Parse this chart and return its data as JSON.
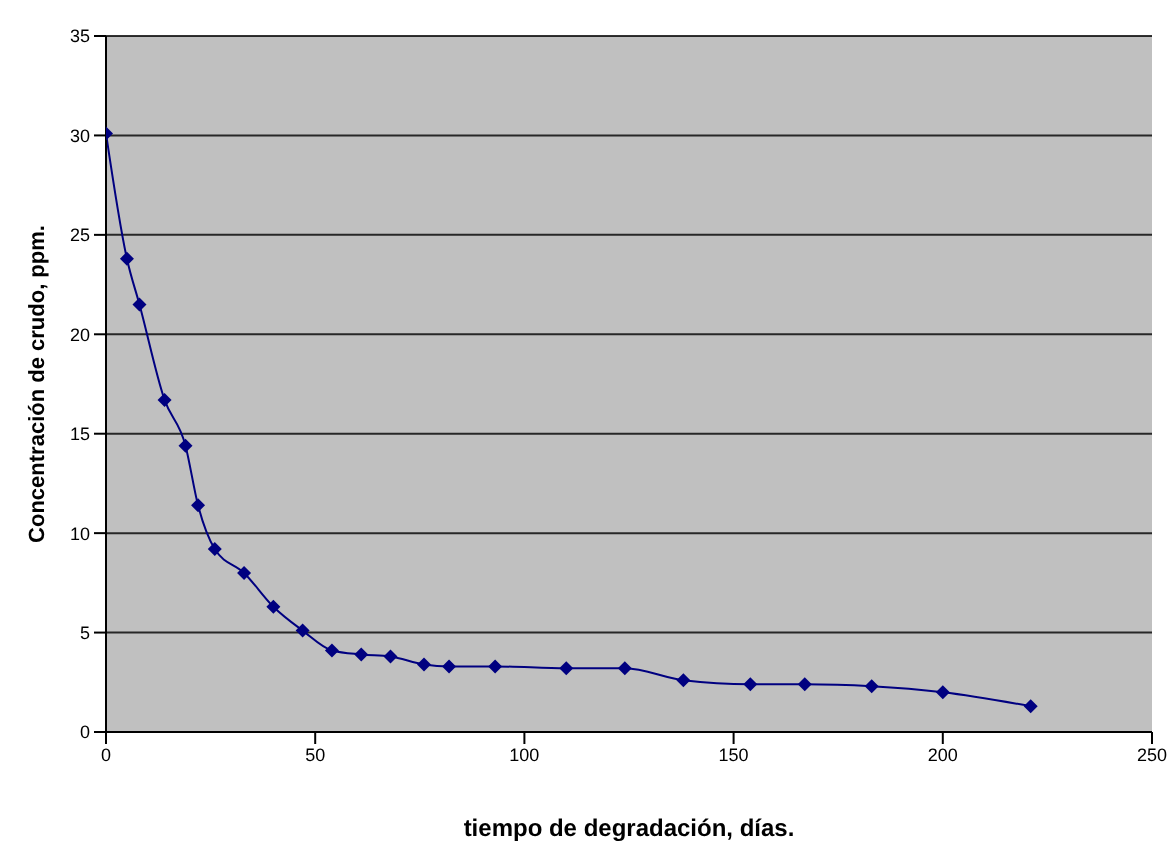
{
  "chart_data": {
    "type": "line",
    "xlabel": "tiempo de degradación, días.",
    "ylabel": "Concentración de crudo, ppm.",
    "x": [
      0,
      5,
      8,
      14,
      19,
      22,
      26,
      33,
      40,
      47,
      54,
      61,
      68,
      76,
      82,
      93,
      110,
      124,
      138,
      154,
      167,
      183,
      200,
      221
    ],
    "series": [
      {
        "color": "#000080",
        "values": [
          30.1,
          23.8,
          21.5,
          16.7,
          14.4,
          11.4,
          9.2,
          8.0,
          6.3,
          5.1,
          4.1,
          3.9,
          3.8,
          3.4,
          3.3,
          3.3,
          3.2,
          3.2,
          2.6,
          2.4,
          2.4,
          2.3,
          2.0,
          1.3
        ]
      }
    ],
    "xlim": [
      0,
      250
    ],
    "xticks": [
      0,
      50,
      100,
      150,
      200,
      250
    ],
    "ylim": [
      0,
      35
    ],
    "yticks": [
      0,
      5,
      10,
      15,
      20,
      25,
      30,
      35
    ],
    "grid": "y",
    "marker": "diamond",
    "line_style": "solid"
  }
}
